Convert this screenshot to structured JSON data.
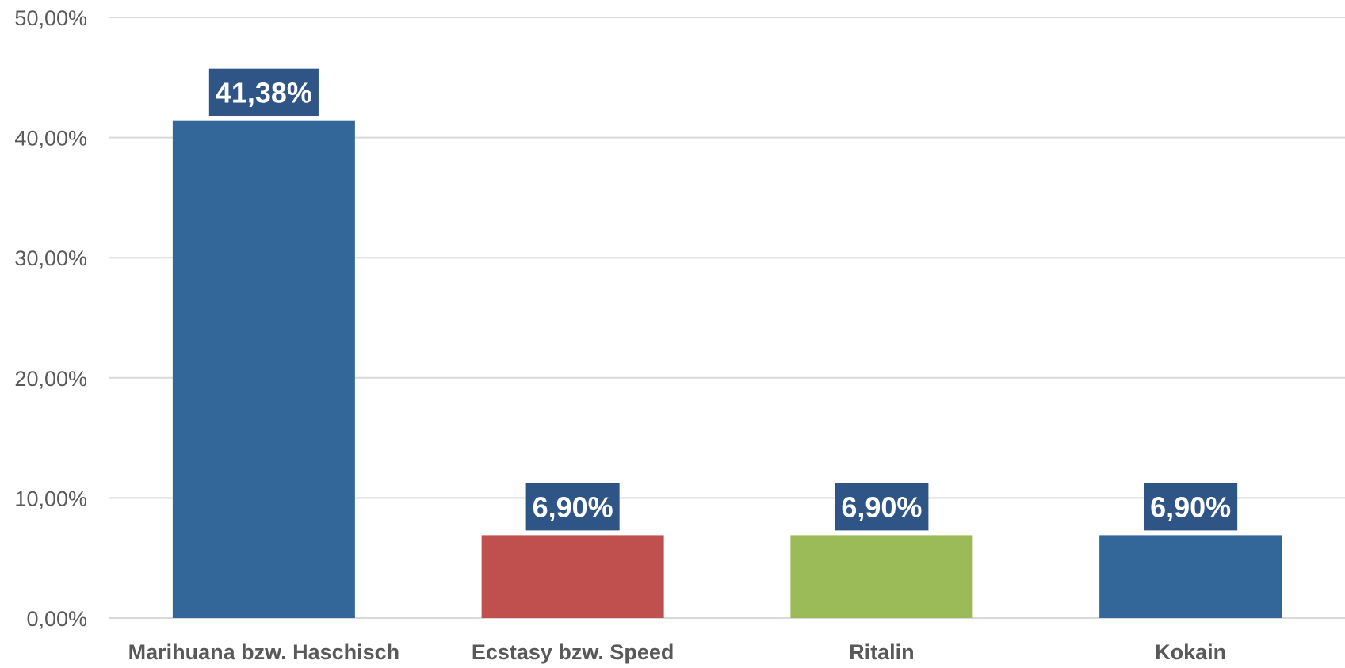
{
  "chart_data": {
    "type": "bar",
    "title": "",
    "xlabel": "",
    "ylabel": "",
    "categories": [
      "Marihuana bzw. Haschisch",
      "Ecstasy bzw. Speed",
      "Ritalin",
      "Kokain"
    ],
    "values": [
      41.38,
      6.9,
      6.9,
      6.9
    ],
    "data_labels": [
      "41,38%",
      "6,90%",
      "6,90%",
      "6,90%"
    ],
    "bar_colors": [
      "#336699",
      "#C0504D",
      "#9BBB59",
      "#336699"
    ],
    "label_box_color": "#2E5585",
    "ylim": [
      0,
      50
    ],
    "y_ticks": [
      0,
      10,
      20,
      30,
      40,
      50
    ],
    "y_tick_labels": [
      "0,00%",
      "10,00%",
      "20,00%",
      "30,00%",
      "40,00%",
      "50,00%"
    ],
    "grid": true,
    "legend": "none"
  }
}
